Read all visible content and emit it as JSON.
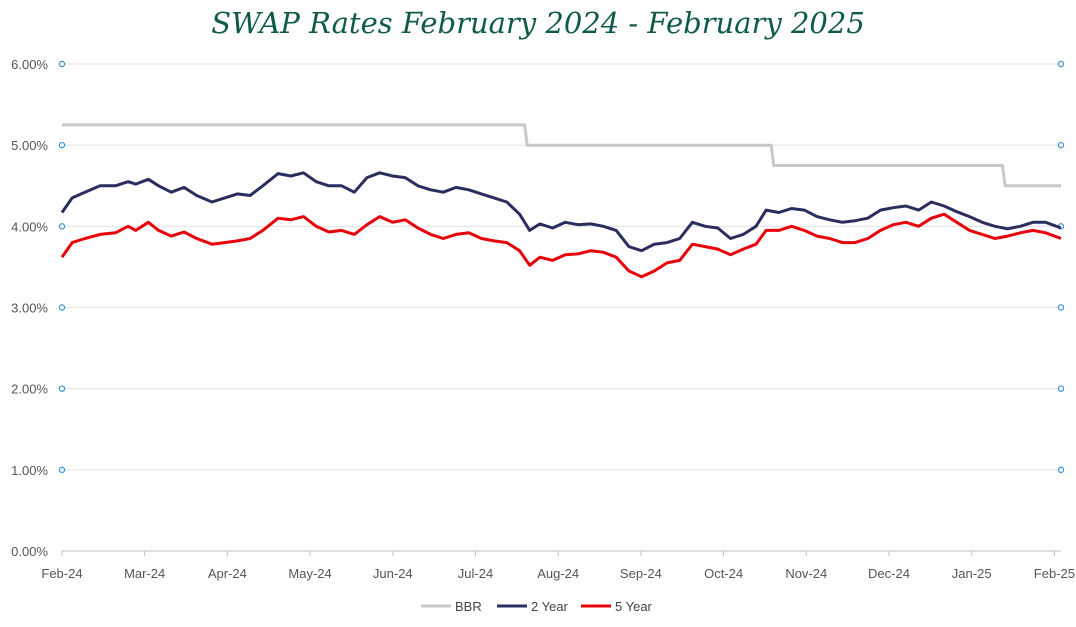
{
  "chart_data": {
    "type": "line",
    "title": "SWAP Rates February 2024 - February 2025",
    "xlabel": "",
    "ylabel": "",
    "x_start": "2024-02-01",
    "x_end": "2025-02-28",
    "x_ticks": [
      "Feb-24",
      "Mar-24",
      "Apr-24",
      "May-24",
      "Jun-24",
      "Jul-24",
      "Aug-24",
      "Sep-24",
      "Oct-24",
      "Nov-24",
      "Dec-24",
      "Jan-25",
      "Feb-25"
    ],
    "y_ticks": [
      "0.00%",
      "1.00%",
      "2.00%",
      "3.00%",
      "4.00%",
      "5.00%",
      "6.00%"
    ],
    "ylim": [
      0,
      6
    ],
    "grid": true,
    "legend_position": "bottom",
    "series": [
      {
        "name": "BBR",
        "color": "#c8c8c8",
        "points": [
          [
            "2024-02-01",
            5.25
          ],
          [
            "2024-08-01",
            5.25
          ],
          [
            "2024-08-02",
            5.0
          ],
          [
            "2024-11-06",
            5.0
          ],
          [
            "2024-11-07",
            4.75
          ],
          [
            "2025-02-05",
            4.75
          ],
          [
            "2025-02-06",
            4.5
          ],
          [
            "2025-02-28",
            4.5
          ]
        ]
      },
      {
        "name": "2 Year",
        "color": "#2b2d5e",
        "points": [
          [
            "2024-02-01",
            4.17
          ],
          [
            "2024-02-05",
            4.35
          ],
          [
            "2024-02-10",
            4.42
          ],
          [
            "2024-02-16",
            4.5
          ],
          [
            "2024-02-22",
            4.5
          ],
          [
            "2024-02-27",
            4.55
          ],
          [
            "2024-03-01",
            4.52
          ],
          [
            "2024-03-06",
            4.58
          ],
          [
            "2024-03-10",
            4.5
          ],
          [
            "2024-03-15",
            4.42
          ],
          [
            "2024-03-20",
            4.48
          ],
          [
            "2024-03-25",
            4.38
          ],
          [
            "2024-03-31",
            4.3
          ],
          [
            "2024-04-05",
            4.35
          ],
          [
            "2024-04-10",
            4.4
          ],
          [
            "2024-04-15",
            4.38
          ],
          [
            "2024-04-20",
            4.5
          ],
          [
            "2024-04-26",
            4.65
          ],
          [
            "2024-05-01",
            4.62
          ],
          [
            "2024-05-06",
            4.66
          ],
          [
            "2024-05-11",
            4.55
          ],
          [
            "2024-05-16",
            4.5
          ],
          [
            "2024-05-21",
            4.5
          ],
          [
            "2024-05-26",
            4.42
          ],
          [
            "2024-05-31",
            4.6
          ],
          [
            "2024-06-05",
            4.66
          ],
          [
            "2024-06-10",
            4.62
          ],
          [
            "2024-06-15",
            4.6
          ],
          [
            "2024-06-20",
            4.5
          ],
          [
            "2024-06-25",
            4.45
          ],
          [
            "2024-06-30",
            4.42
          ],
          [
            "2024-07-05",
            4.48
          ],
          [
            "2024-07-10",
            4.45
          ],
          [
            "2024-07-15",
            4.4
          ],
          [
            "2024-07-20",
            4.35
          ],
          [
            "2024-07-25",
            4.3
          ],
          [
            "2024-07-30",
            4.15
          ],
          [
            "2024-08-03",
            3.95
          ],
          [
            "2024-08-07",
            4.03
          ],
          [
            "2024-08-12",
            3.98
          ],
          [
            "2024-08-17",
            4.05
          ],
          [
            "2024-08-22",
            4.02
          ],
          [
            "2024-08-27",
            4.03
          ],
          [
            "2024-09-01",
            4.0
          ],
          [
            "2024-09-06",
            3.95
          ],
          [
            "2024-09-11",
            3.75
          ],
          [
            "2024-09-16",
            3.7
          ],
          [
            "2024-09-21",
            3.78
          ],
          [
            "2024-09-26",
            3.8
          ],
          [
            "2024-10-01",
            3.85
          ],
          [
            "2024-10-06",
            4.05
          ],
          [
            "2024-10-11",
            4.0
          ],
          [
            "2024-10-16",
            3.98
          ],
          [
            "2024-10-21",
            3.85
          ],
          [
            "2024-10-26",
            3.9
          ],
          [
            "2024-10-31",
            4.0
          ],
          [
            "2024-11-04",
            4.2
          ],
          [
            "2024-11-09",
            4.17
          ],
          [
            "2024-11-14",
            4.22
          ],
          [
            "2024-11-19",
            4.2
          ],
          [
            "2024-11-24",
            4.12
          ],
          [
            "2024-11-29",
            4.08
          ],
          [
            "2024-12-04",
            4.05
          ],
          [
            "2024-12-09",
            4.07
          ],
          [
            "2024-12-14",
            4.1
          ],
          [
            "2024-12-19",
            4.2
          ],
          [
            "2024-12-24",
            4.23
          ],
          [
            "2024-12-29",
            4.25
          ],
          [
            "2025-01-03",
            4.2
          ],
          [
            "2025-01-08",
            4.3
          ],
          [
            "2025-01-13",
            4.25
          ],
          [
            "2025-01-18",
            4.18
          ],
          [
            "2025-01-23",
            4.12
          ],
          [
            "2025-01-28",
            4.05
          ],
          [
            "2025-02-02",
            4.0
          ],
          [
            "2025-02-07",
            3.97
          ],
          [
            "2025-02-12",
            4.0
          ],
          [
            "2025-02-17",
            4.05
          ],
          [
            "2025-02-22",
            4.05
          ],
          [
            "2025-02-28",
            3.98
          ]
        ]
      },
      {
        "name": "5 Year",
        "color": "#e8000b",
        "points": [
          [
            "2024-02-01",
            3.62
          ],
          [
            "2024-02-05",
            3.8
          ],
          [
            "2024-02-10",
            3.85
          ],
          [
            "2024-02-16",
            3.9
          ],
          [
            "2024-02-22",
            3.92
          ],
          [
            "2024-02-27",
            4.0
          ],
          [
            "2024-03-01",
            3.95
          ],
          [
            "2024-03-06",
            4.05
          ],
          [
            "2024-03-10",
            3.95
          ],
          [
            "2024-03-15",
            3.88
          ],
          [
            "2024-03-20",
            3.93
          ],
          [
            "2024-03-25",
            3.85
          ],
          [
            "2024-03-31",
            3.78
          ],
          [
            "2024-04-05",
            3.8
          ],
          [
            "2024-04-10",
            3.82
          ],
          [
            "2024-04-15",
            3.85
          ],
          [
            "2024-04-20",
            3.95
          ],
          [
            "2024-04-26",
            4.1
          ],
          [
            "2024-05-01",
            4.08
          ],
          [
            "2024-05-06",
            4.12
          ],
          [
            "2024-05-11",
            4.0
          ],
          [
            "2024-05-16",
            3.93
          ],
          [
            "2024-05-21",
            3.95
          ],
          [
            "2024-05-26",
            3.9
          ],
          [
            "2024-05-31",
            4.02
          ],
          [
            "2024-06-05",
            4.12
          ],
          [
            "2024-06-10",
            4.05
          ],
          [
            "2024-06-15",
            4.08
          ],
          [
            "2024-06-20",
            3.98
          ],
          [
            "2024-06-25",
            3.9
          ],
          [
            "2024-06-30",
            3.85
          ],
          [
            "2024-07-05",
            3.9
          ],
          [
            "2024-07-10",
            3.92
          ],
          [
            "2024-07-15",
            3.85
          ],
          [
            "2024-07-20",
            3.82
          ],
          [
            "2024-07-25",
            3.8
          ],
          [
            "2024-07-30",
            3.7
          ],
          [
            "2024-08-03",
            3.52
          ],
          [
            "2024-08-07",
            3.62
          ],
          [
            "2024-08-12",
            3.58
          ],
          [
            "2024-08-17",
            3.65
          ],
          [
            "2024-08-22",
            3.66
          ],
          [
            "2024-08-27",
            3.7
          ],
          [
            "2024-09-01",
            3.68
          ],
          [
            "2024-09-06",
            3.62
          ],
          [
            "2024-09-11",
            3.45
          ],
          [
            "2024-09-16",
            3.38
          ],
          [
            "2024-09-21",
            3.45
          ],
          [
            "2024-09-26",
            3.55
          ],
          [
            "2024-10-01",
            3.58
          ],
          [
            "2024-10-06",
            3.78
          ],
          [
            "2024-10-11",
            3.75
          ],
          [
            "2024-10-16",
            3.72
          ],
          [
            "2024-10-21",
            3.65
          ],
          [
            "2024-10-26",
            3.72
          ],
          [
            "2024-10-31",
            3.78
          ],
          [
            "2024-11-04",
            3.95
          ],
          [
            "2024-11-09",
            3.95
          ],
          [
            "2024-11-14",
            4.0
          ],
          [
            "2024-11-19",
            3.95
          ],
          [
            "2024-11-24",
            3.88
          ],
          [
            "2024-11-29",
            3.85
          ],
          [
            "2024-12-04",
            3.8
          ],
          [
            "2024-12-09",
            3.8
          ],
          [
            "2024-12-14",
            3.85
          ],
          [
            "2024-12-19",
            3.95
          ],
          [
            "2024-12-24",
            4.02
          ],
          [
            "2024-12-29",
            4.05
          ],
          [
            "2025-01-03",
            4.0
          ],
          [
            "2025-01-08",
            4.1
          ],
          [
            "2025-01-13",
            4.15
          ],
          [
            "2025-01-18",
            4.05
          ],
          [
            "2025-01-23",
            3.95
          ],
          [
            "2025-01-28",
            3.9
          ],
          [
            "2025-02-02",
            3.85
          ],
          [
            "2025-02-07",
            3.88
          ],
          [
            "2025-02-12",
            3.92
          ],
          [
            "2025-02-17",
            3.95
          ],
          [
            "2025-02-22",
            3.92
          ],
          [
            "2025-02-28",
            3.85
          ]
        ]
      }
    ]
  }
}
